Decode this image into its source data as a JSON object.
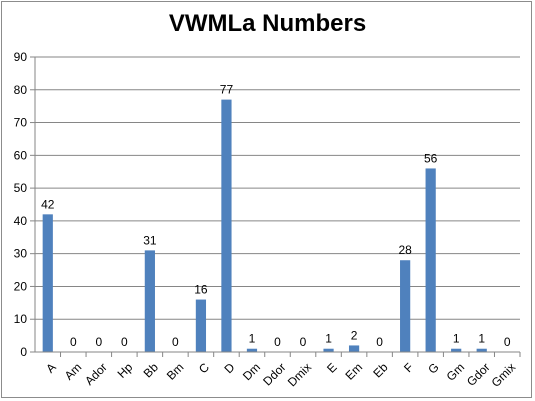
{
  "chart_data": {
    "type": "bar",
    "title": "VWMLa Numbers",
    "xlabel": "",
    "ylabel": "",
    "ylim": [
      0,
      90
    ],
    "yticks": [
      0,
      10,
      20,
      30,
      40,
      50,
      60,
      70,
      80,
      90
    ],
    "grid": true,
    "legend": "none",
    "bar_color": "#4f81bd",
    "categories": [
      "A",
      "Am",
      "Ador",
      "Hp",
      "Bb",
      "Bm",
      "C",
      "D",
      "Dm",
      "Ddor",
      "Dmix",
      "E",
      "Em",
      "Eb",
      "F",
      "G",
      "Gm",
      "Gdor",
      "Gmix"
    ],
    "values": [
      42,
      0,
      0,
      0,
      31,
      0,
      16,
      77,
      1,
      0,
      0,
      1,
      2,
      0,
      28,
      56,
      1,
      1,
      0
    ]
  }
}
